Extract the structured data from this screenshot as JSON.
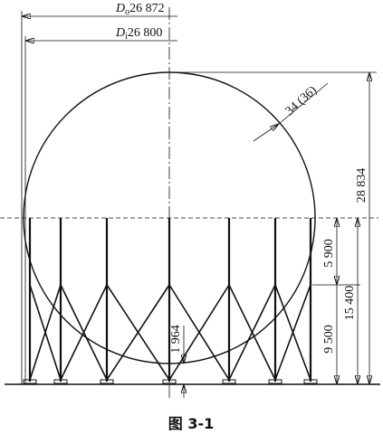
{
  "dimensions": {
    "outer_diameter": {
      "symbol": "D",
      "subscript": "o",
      "value": "26 872"
    },
    "inner_diameter": {
      "symbol": "D",
      "subscript": "i",
      "value": "26 800"
    },
    "wall_thickness": "34 (36)",
    "total_height": "28 834",
    "upper_column": "5 900",
    "equator_height": "15 400",
    "lower_column": "9 500",
    "bottom_clearance": "1 964"
  },
  "caption": "图 3-1"
}
